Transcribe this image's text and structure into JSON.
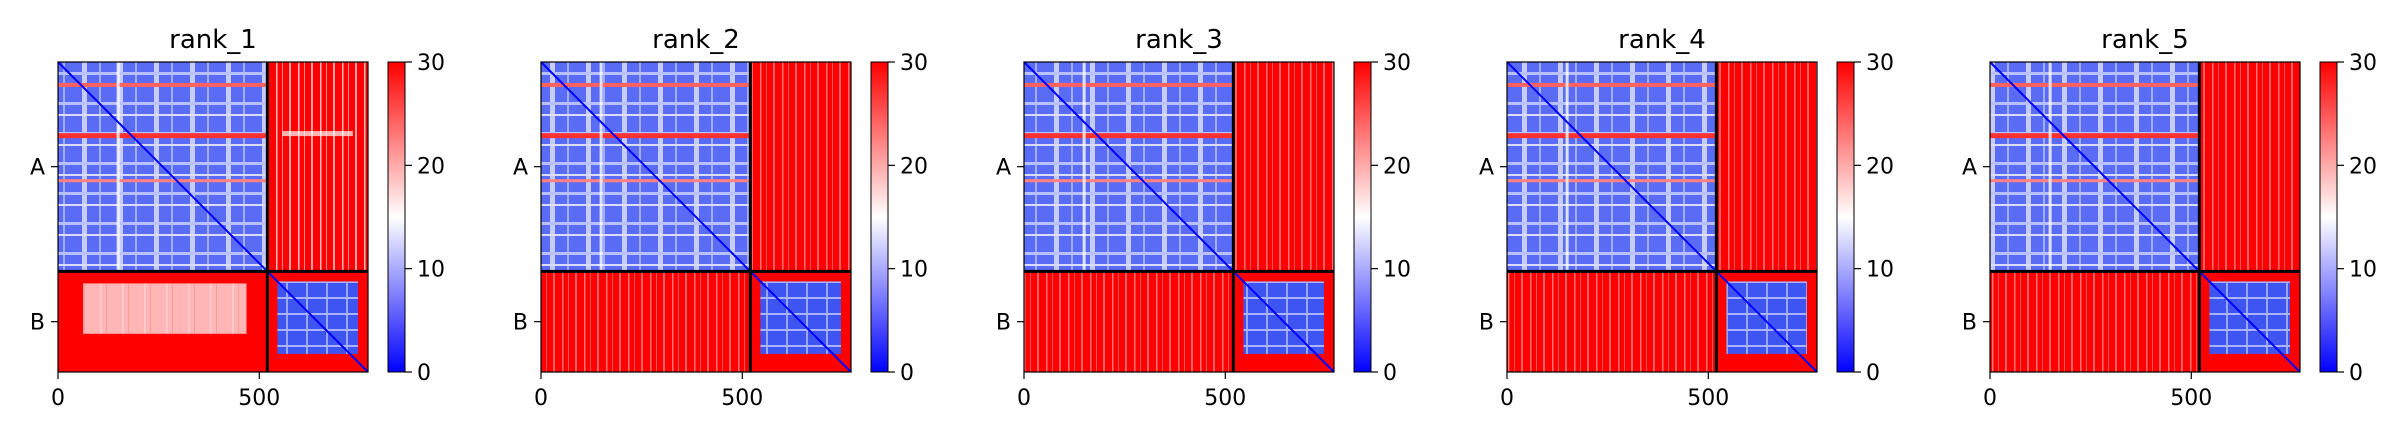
{
  "chart_data": [
    {
      "type": "heatmap",
      "title": "rank_1",
      "x_ticks": [
        0,
        500
      ],
      "y_ticks": [
        "A",
        "B"
      ],
      "chain_lengths": {
        "A": 520,
        "B": 250
      },
      "xlim": [
        0,
        770
      ],
      "colorbar": {
        "ticks": [
          0,
          10,
          20,
          30
        ],
        "range": [
          0,
          30
        ],
        "colors": [
          "#0000ff",
          "#ffffff",
          "#ff0000"
        ]
      },
      "off_diagonal_AB": "mixed",
      "off_diagonal_BA": "mixed"
    },
    {
      "type": "heatmap",
      "title": "rank_2",
      "x_ticks": [
        0,
        500
      ],
      "y_ticks": [
        "A",
        "B"
      ],
      "chain_lengths": {
        "A": 520,
        "B": 250
      },
      "xlim": [
        0,
        770
      ],
      "colorbar": {
        "ticks": [
          0,
          10,
          20,
          30
        ],
        "range": [
          0,
          30
        ],
        "colors": [
          "#0000ff",
          "#ffffff",
          "#ff0000"
        ]
      },
      "off_diagonal_AB": "red",
      "off_diagonal_BA": "red"
    },
    {
      "type": "heatmap",
      "title": "rank_3",
      "x_ticks": [
        0,
        500
      ],
      "y_ticks": [
        "A",
        "B"
      ],
      "chain_lengths": {
        "A": 520,
        "B": 250
      },
      "xlim": [
        0,
        770
      ],
      "colorbar": {
        "ticks": [
          0,
          10,
          20,
          30
        ],
        "range": [
          0,
          30
        ],
        "colors": [
          "#0000ff",
          "#ffffff",
          "#ff0000"
        ]
      },
      "off_diagonal_AB": "red",
      "off_diagonal_BA": "red"
    },
    {
      "type": "heatmap",
      "title": "rank_4",
      "x_ticks": [
        0,
        500
      ],
      "y_ticks": [
        "A",
        "B"
      ],
      "chain_lengths": {
        "A": 520,
        "B": 250
      },
      "xlim": [
        0,
        770
      ],
      "colorbar": {
        "ticks": [
          0,
          10,
          20,
          30
        ],
        "range": [
          0,
          30
        ],
        "colors": [
          "#0000ff",
          "#ffffff",
          "#ff0000"
        ]
      },
      "off_diagonal_AB": "red",
      "off_diagonal_BA": "red"
    },
    {
      "type": "heatmap",
      "title": "rank_5",
      "x_ticks": [
        0,
        500
      ],
      "y_ticks": [
        "A",
        "B"
      ],
      "chain_lengths": {
        "A": 520,
        "B": 250
      },
      "xlim": [
        0,
        770
      ],
      "colorbar": {
        "ticks": [
          0,
          10,
          20,
          30
        ],
        "range": [
          0,
          30
        ],
        "colors": [
          "#0000ff",
          "#ffffff",
          "#ff0000"
        ]
      },
      "off_diagonal_AB": "red",
      "off_diagonal_BA": "red"
    }
  ]
}
